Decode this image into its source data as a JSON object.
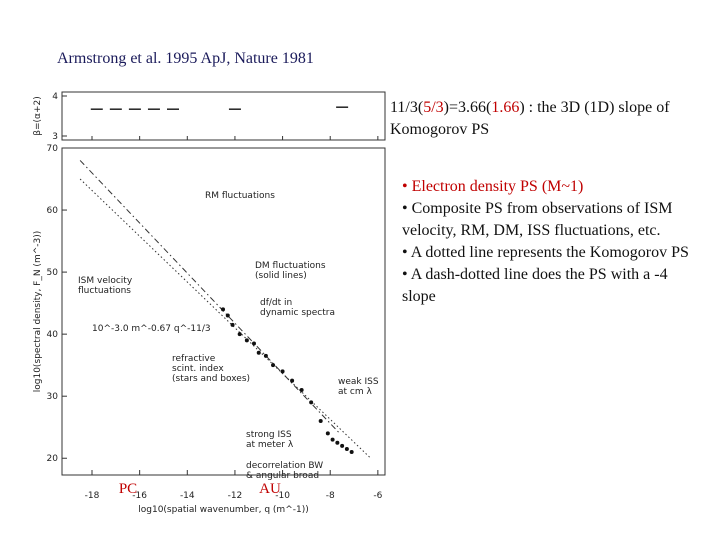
{
  "header": {
    "citation": "Armstrong et al. 1995 ApJ, Nature 1981"
  },
  "note": {
    "parts": [
      "11/3(",
      "5/3",
      ")=3.66(",
      "1.66",
      ") : the 3D (1D) slope of Komogorov PS"
    ]
  },
  "bullets": [
    "• Electron density PS (M~1)",
    "• Composite PS from observations of ISM velocity, RM, DM, ISS fluctuations, etc.",
    "• A dotted line represents the Komogorov PS",
    "• A dash-dotted line does the PS with a -4 slope"
  ],
  "chart_data": {
    "type": "scatter",
    "xlabel": "log10(spatial wavenumber, q (m^-1))",
    "ylabel": "log10(spectral density, F_N (m^-3))",
    "top_ylabel": "β=(α+2)",
    "xlim": [
      -19.26,
      -5.7
    ],
    "ylim": [
      17.3,
      70
    ],
    "xticks": [
      -18,
      -16,
      -14,
      -12,
      -10,
      -8,
      -6
    ],
    "yticks": [
      20,
      30,
      40,
      50,
      60,
      70
    ],
    "top_ylim": [
      2.9,
      4.1
    ],
    "top_yticks": [
      3,
      4
    ],
    "series": [
      {
        "color": "#111111",
        "x": [
          -12.5,
          -12.3,
          -12.1,
          -11.8,
          -11.5,
          -11.2,
          -11,
          -10.7,
          -10.4,
          -10,
          -9.6,
          -9.2,
          -8.8,
          -8.4,
          -8.1,
          -7.9,
          -7.7,
          -7.5,
          -7.3,
          -7.1
        ],
        "values": [
          44,
          43,
          41.5,
          40,
          39,
          38.5,
          37,
          36.5,
          35,
          34,
          32.5,
          31,
          29,
          26,
          24,
          23,
          22.5,
          22,
          21.5,
          21
        ]
      }
    ],
    "top_series": {
      "x": [
        -17.8,
        -17,
        -16.2,
        -15.4,
        -14.6,
        -12,
        -7.5
      ],
      "values": [
        3.67,
        3.67,
        3.67,
        3.67,
        3.67,
        3.67,
        3.72
      ]
    },
    "kolmogorov_line": {
      "x": [
        -18.5,
        -6.3
      ],
      "values": [
        65,
        20
      ]
    },
    "slope4_line": {
      "x": [
        -18.5,
        -7.6
      ],
      "values": [
        68,
        24
      ]
    },
    "annotations": [
      "RM fluctuations",
      "DM fluctuations",
      "(solid lines)",
      "ISM velocity",
      "fluctuations",
      "df/dt in",
      "dynamic spectra",
      "10^-3.0 m^-0.67 q^-11/3",
      "refractive",
      "scint. index",
      "(stars and boxes)",
      "weak ISS",
      "at cm λ",
      "strong ISS",
      "at meter λ",
      "decorrelation BW",
      "& angular broad"
    ],
    "scale_labels": [
      "PC",
      "AU"
    ]
  }
}
